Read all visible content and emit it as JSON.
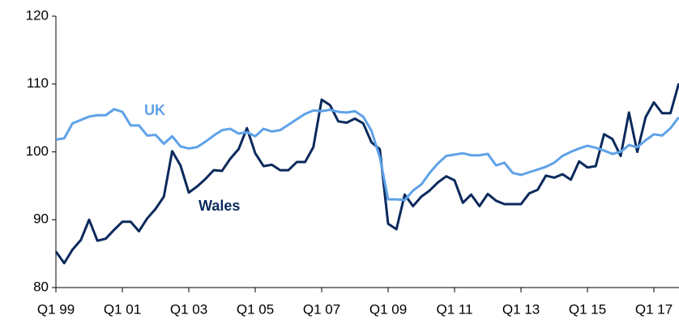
{
  "chart_data": {
    "type": "line",
    "categories": [
      "Q1 99",
      null,
      null,
      null,
      null,
      null,
      null,
      null,
      "Q1 01",
      null,
      null,
      null,
      null,
      null,
      null,
      null,
      "Q1 03",
      null,
      null,
      null,
      null,
      null,
      null,
      null,
      "Q1 05",
      null,
      null,
      null,
      null,
      null,
      null,
      null,
      "Q1 07",
      null,
      null,
      null,
      null,
      null,
      null,
      null,
      "Q1 09",
      null,
      null,
      null,
      null,
      null,
      null,
      null,
      "Q1 11",
      null,
      null,
      null,
      null,
      null,
      null,
      null,
      "Q1 13",
      null,
      null,
      null,
      null,
      null,
      null,
      null,
      "Q1 15",
      null,
      null,
      null,
      null,
      null,
      null,
      null,
      "Q1 17",
      null,
      null,
      null
    ],
    "series": [
      {
        "name": "Wales",
        "color": "#0b2a5c",
        "values": [
          85.3,
          83.6,
          85.6,
          87,
          90,
          86.9,
          87.2,
          88.5,
          89.7,
          89.7,
          88.3,
          90.2,
          91.6,
          93.4,
          100.1,
          98,
          94,
          94.9,
          96,
          97.3,
          97.2,
          99,
          100.4,
          103.5,
          99.8,
          97.9,
          98.1,
          97.3,
          97.3,
          98.5,
          98.5,
          100.7,
          107.7,
          106.9,
          104.5,
          104.3,
          104.9,
          104.2,
          101.4,
          100.4,
          89.4,
          88.6,
          93.7,
          92,
          93.4,
          94.3,
          95.5,
          96.4,
          95.8,
          92.5,
          93.7,
          92,
          93.8,
          92.8,
          92.3,
          92.3,
          92.3,
          93.9,
          94.4,
          96.5,
          96.2,
          96.7,
          95.9,
          98.6,
          97.7,
          97.9,
          102.6,
          101.9,
          99.4,
          105.8,
          100,
          105.1,
          107.3,
          105.7,
          105.7,
          110.1
        ]
      },
      {
        "name": "UK",
        "color": "#5ea2e8",
        "values": [
          101.8,
          102,
          104.2,
          104.7,
          105.2,
          105.4,
          105.4,
          106.3,
          105.9,
          103.9,
          103.9,
          102.4,
          102.5,
          101.2,
          102.3,
          100.8,
          100.5,
          100.7,
          101.5,
          102.4,
          103.2,
          103.4,
          102.7,
          102.9,
          102.3,
          103.4,
          103,
          103.2,
          104,
          104.8,
          105.6,
          106.1,
          106,
          106.2,
          105.9,
          105.8,
          106,
          105.2,
          103.1,
          99.2,
          93,
          93,
          92.9,
          94.3,
          95.2,
          96.9,
          98.3,
          99.4,
          99.6,
          99.8,
          99.5,
          99.5,
          99.7,
          98,
          98.4,
          96.9,
          96.6,
          97,
          97.4,
          97.8,
          98.4,
          99.4,
          100,
          100.5,
          100.9,
          100.6,
          100.2,
          99.7,
          100,
          101,
          100.7,
          101.7,
          102.6,
          102.4,
          103.5,
          105.1
        ]
      }
    ],
    "ylim": [
      80,
      120
    ],
    "yticks": [
      80,
      90,
      100,
      110,
      120
    ],
    "grid": false
  }
}
